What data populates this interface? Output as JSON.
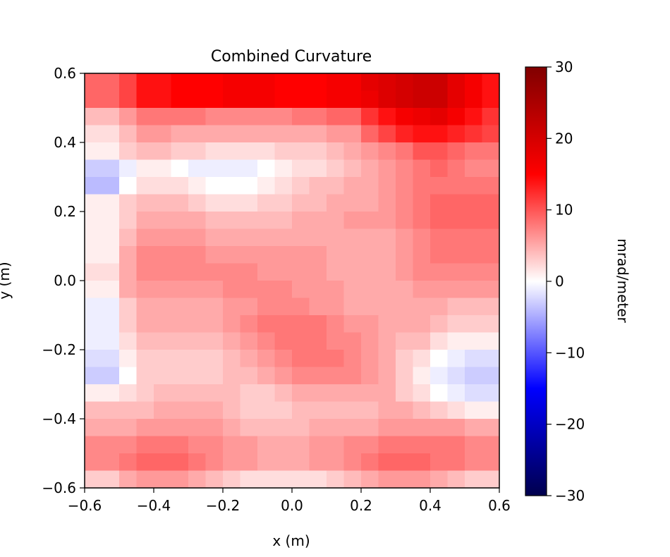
{
  "chart_data": {
    "type": "heatmap",
    "title": "Combined Curvature",
    "xlabel": "x (m)",
    "ylabel": "y (m)",
    "xlim": [
      -0.6,
      0.6
    ],
    "ylim": [
      -0.6,
      0.6
    ],
    "x_ticks": [
      -0.6,
      -0.4,
      -0.2,
      0.0,
      0.2,
      0.4,
      0.6
    ],
    "x_tick_labels": [
      "−0.6",
      "−0.4",
      "−0.2",
      "0.0",
      "0.2",
      "0.4",
      "0.6"
    ],
    "y_ticks": [
      -0.6,
      -0.4,
      -0.2,
      0.0,
      0.2,
      0.4,
      0.6
    ],
    "y_tick_labels": [
      "−0.6",
      "−0.4",
      "−0.2",
      "0.0",
      "0.2",
      "0.4",
      "0.6"
    ],
    "colormap": "seismic",
    "colorbar": {
      "label": "mrad/meter",
      "range": [
        -30,
        30
      ],
      "ticks": [
        -30,
        -20,
        -10,
        0,
        10,
        20,
        30
      ],
      "tick_labels": [
        "−30",
        "−20",
        "−10",
        "0",
        "10",
        "20",
        "30"
      ]
    },
    "grid": false,
    "grid_shape": [
      24,
      24
    ],
    "row_order": "top_to_bottom",
    "values": [
      [
        9,
        9,
        11,
        14,
        14,
        15,
        15,
        15,
        16,
        16,
        16,
        15,
        15,
        15,
        16,
        16,
        18,
        19,
        20,
        21,
        21,
        18,
        16,
        14
      ],
      [
        9,
        9,
        11,
        14,
        14,
        15,
        15,
        15,
        16,
        16,
        16,
        15,
        15,
        15,
        16,
        16,
        17,
        19,
        20,
        21,
        21,
        18,
        16,
        14
      ],
      [
        4,
        4,
        6,
        8,
        8,
        8,
        8,
        7,
        7,
        7,
        7,
        7,
        8,
        8,
        9,
        9,
        12,
        14,
        16,
        17,
        18,
        16,
        14,
        12
      ],
      [
        2,
        2,
        4,
        6,
        6,
        5,
        5,
        5,
        5,
        5,
        5,
        5,
        5,
        5,
        6,
        6,
        9,
        11,
        13,
        14,
        14,
        13,
        12,
        11
      ],
      [
        1,
        1,
        3,
        4,
        4,
        3,
        3,
        2,
        2,
        2,
        2,
        3,
        3,
        3,
        4,
        5,
        6,
        7,
        8,
        10,
        10,
        9,
        8,
        8
      ],
      [
        -3,
        -3,
        -1,
        1,
        1,
        0,
        -1,
        -1,
        -1,
        -1,
        0,
        1,
        2,
        2,
        3,
        4,
        5,
        6,
        7,
        8,
        9,
        8,
        7,
        7
      ],
      [
        -4,
        -4,
        0,
        2,
        2,
        2,
        1,
        0,
        0,
        0,
        1,
        2,
        3,
        4,
        4,
        5,
        5,
        6,
        7,
        8,
        8,
        8,
        8,
        8
      ],
      [
        1,
        1,
        3,
        4,
        4,
        4,
        3,
        2,
        2,
        2,
        3,
        3,
        4,
        4,
        5,
        5,
        5,
        6,
        7,
        8,
        9,
        9,
        9,
        9
      ],
      [
        1,
        1,
        3,
        5,
        5,
        5,
        5,
        4,
        4,
        4,
        4,
        4,
        5,
        5,
        5,
        6,
        6,
        6,
        7,
        8,
        9,
        9,
        9,
        9
      ],
      [
        1,
        1,
        4,
        6,
        6,
        6,
        6,
        5,
        5,
        5,
        5,
        5,
        5,
        5,
        5,
        5,
        5,
        5,
        6,
        7,
        8,
        8,
        8,
        8
      ],
      [
        1,
        1,
        5,
        7,
        7,
        7,
        7,
        6,
        6,
        6,
        6,
        6,
        6,
        6,
        5,
        5,
        5,
        5,
        6,
        7,
        8,
        8,
        8,
        8
      ],
      [
        2,
        2,
        5,
        7,
        7,
        7,
        7,
        7,
        7,
        7,
        6,
        6,
        6,
        6,
        5,
        5,
        5,
        5,
        6,
        7,
        7,
        7,
        7,
        7
      ],
      [
        1,
        1,
        5,
        6,
        6,
        6,
        6,
        6,
        7,
        7,
        7,
        7,
        6,
        6,
        6,
        5,
        5,
        5,
        5,
        6,
        6,
        6,
        6,
        6
      ],
      [
        -1,
        -1,
        3,
        5,
        5,
        5,
        5,
        5,
        6,
        6,
        7,
        7,
        7,
        6,
        6,
        5,
        5,
        5,
        5,
        5,
        5,
        4,
        4,
        4
      ],
      [
        -1,
        -1,
        3,
        5,
        5,
        5,
        5,
        5,
        6,
        7,
        8,
        8,
        8,
        8,
        7,
        6,
        6,
        5,
        5,
        5,
        4,
        3,
        3,
        3
      ],
      [
        -1,
        -1,
        2,
        4,
        4,
        4,
        4,
        4,
        5,
        6,
        7,
        8,
        8,
        8,
        7,
        7,
        6,
        5,
        4,
        4,
        2,
        1,
        1,
        1
      ],
      [
        -2,
        -2,
        1,
        3,
        3,
        3,
        3,
        3,
        4,
        5,
        6,
        7,
        8,
        8,
        8,
        7,
        6,
        5,
        3,
        2,
        0,
        -1,
        -2,
        -2
      ],
      [
        -3,
        -3,
        0,
        3,
        3,
        3,
        3,
        3,
        4,
        4,
        5,
        6,
        7,
        7,
        7,
        7,
        6,
        5,
        3,
        1,
        -1,
        -2,
        -3,
        -3
      ],
      [
        1,
        1,
        2,
        3,
        4,
        4,
        4,
        4,
        4,
        3,
        3,
        4,
        5,
        5,
        5,
        5,
        5,
        5,
        3,
        2,
        0,
        -1,
        -2,
        -2
      ],
      [
        4,
        4,
        4,
        4,
        5,
        5,
        5,
        5,
        4,
        3,
        3,
        3,
        4,
        4,
        4,
        4,
        4,
        5,
        5,
        4,
        3,
        2,
        1,
        1
      ],
      [
        5,
        5,
        5,
        6,
        6,
        6,
        6,
        6,
        5,
        4,
        4,
        4,
        4,
        5,
        5,
        5,
        5,
        6,
        6,
        6,
        6,
        6,
        5,
        5
      ],
      [
        7,
        7,
        7,
        8,
        8,
        8,
        7,
        7,
        6,
        6,
        5,
        5,
        5,
        6,
        6,
        7,
        7,
        8,
        8,
        8,
        8,
        8,
        7,
        7
      ],
      [
        7,
        7,
        8,
        9,
        9,
        9,
        8,
        7,
        6,
        6,
        5,
        5,
        5,
        6,
        6,
        7,
        8,
        9,
        9,
        9,
        8,
        8,
        7,
        7
      ],
      [
        3,
        3,
        5,
        6,
        6,
        6,
        5,
        4,
        3,
        2,
        2,
        2,
        2,
        2,
        3,
        4,
        5,
        6,
        6,
        6,
        5,
        4,
        3,
        3
      ]
    ]
  }
}
